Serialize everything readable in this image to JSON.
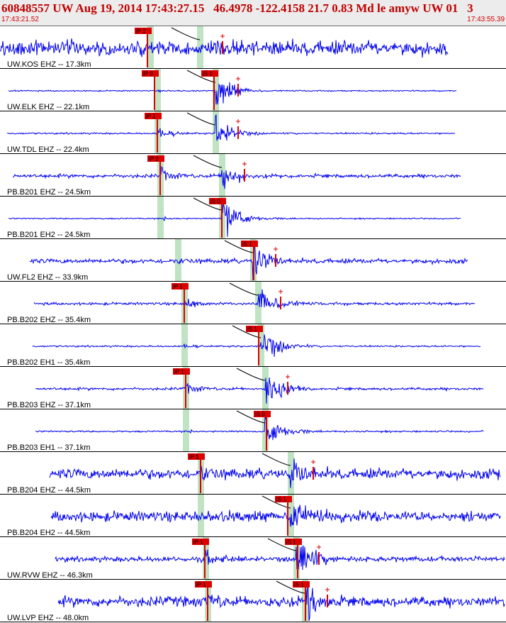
{
  "header": {
    "title": "60848557 UW Aug 19, 2014 17:43:27.15   46.4978 -122.4158 21.7 0.83 Md le amyw UW 01   3",
    "start_time": "17:43:21.52",
    "end_time": "17:43:55.39"
  },
  "colors": {
    "waveform": "#0000ee",
    "pick_marker": "#dd0000",
    "pick_band": "#bfe3c3",
    "theoretical_curve": "#000000",
    "header_text": "#c00000"
  },
  "chart_data": {
    "type": "seismogram",
    "time_range": [
      "17:43:21.52",
      "17:43:55.39"
    ],
    "traces": [
      {
        "label": "UW.KOS EHZ -- 17.3km",
        "distance_km": 17.3,
        "picks": [
          {
            "label": "iP 2",
            "phase": "P"
          }
        ],
        "amplitude_marker": true
      },
      {
        "label": "UW.ELK EHZ -- 22.1km",
        "distance_km": 22.1,
        "picks": [
          {
            "label": "iP 0",
            "phase": "P"
          },
          {
            "label": "iS 1",
            "phase": "S"
          }
        ],
        "amplitude_marker": true
      },
      {
        "label": "UW.TDL EHZ -- 22.4km",
        "distance_km": 22.4,
        "picks": [
          {
            "label": "iP 1",
            "phase": "P"
          }
        ],
        "amplitude_marker": true
      },
      {
        "label": "PB.B201 EHZ -- 24.5km",
        "distance_km": 24.5,
        "picks": [
          {
            "label": "iP 2",
            "phase": "P"
          }
        ],
        "amplitude_marker": true
      },
      {
        "label": "PB.B201 EH2 -- 24.5km",
        "distance_km": 24.5,
        "picks": [
          {
            "label": "iS 0",
            "phase": "S"
          }
        ],
        "amplitude_marker": false
      },
      {
        "label": "UW.FL2 EHZ -- 33.9km",
        "distance_km": 33.9,
        "picks": [
          {
            "label": "iS 1",
            "phase": "S"
          }
        ],
        "amplitude_marker": true
      },
      {
        "label": "PB.B202 EHZ -- 35.4km",
        "distance_km": 35.4,
        "picks": [
          {
            "label": "iP 1",
            "phase": "P"
          }
        ],
        "amplitude_marker": true
      },
      {
        "label": "PB.B202 EH1 -- 35.4km",
        "distance_km": 35.4,
        "picks": [
          {
            "label": "iS 1",
            "phase": "S"
          }
        ],
        "amplitude_marker": false
      },
      {
        "label": "PB.B203 EHZ -- 37.1km",
        "distance_km": 37.1,
        "picks": [
          {
            "label": "iP 1",
            "phase": "P"
          }
        ],
        "amplitude_marker": true
      },
      {
        "label": "PB.B203 EH1 -- 37.1km",
        "distance_km": 37.1,
        "picks": [
          {
            "label": "iS 0",
            "phase": "S"
          }
        ],
        "amplitude_marker": false
      },
      {
        "label": "PB.B204 EHZ -- 44.5km",
        "distance_km": 44.5,
        "picks": [
          {
            "label": "iP 1",
            "phase": "P"
          }
        ],
        "amplitude_marker": true
      },
      {
        "label": "PB.B204 EH2 -- 44.5km",
        "distance_km": 44.5,
        "picks": [
          {
            "label": "iS 1",
            "phase": "S"
          }
        ],
        "amplitude_marker": false
      },
      {
        "label": "UW.RVW EHZ -- 46.3km",
        "distance_km": 46.3,
        "picks": [
          {
            "label": "iP 1",
            "phase": "P"
          },
          {
            "label": "iS 1",
            "phase": "S"
          }
        ],
        "amplitude_marker": true
      },
      {
        "label": "UW.LVP EHZ -- 48.0km",
        "distance_km": 48.0,
        "picks": [
          {
            "label": "iP 1",
            "phase": "P"
          },
          {
            "label": "iS 1",
            "phase": "S"
          }
        ],
        "amplitude_marker": true
      }
    ]
  }
}
